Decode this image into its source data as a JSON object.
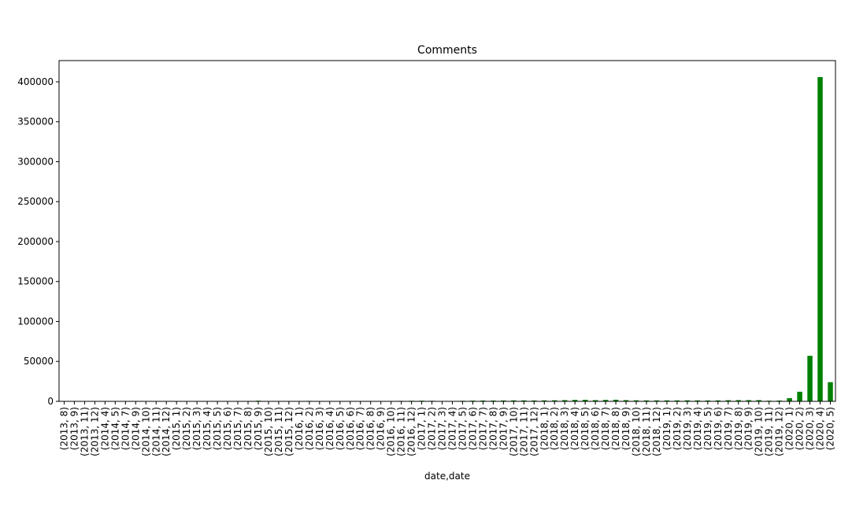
{
  "chart_data": {
    "type": "bar",
    "title": "Comments",
    "x_label": "date,date",
    "categories": [
      "(2013, 8)",
      "(2013, 9)",
      "(2013, 11)",
      "(2013, 12)",
      "(2014, 4)",
      "(2014, 5)",
      "(2014, 7)",
      "(2014, 9)",
      "(2014, 10)",
      "(2014, 11)",
      "(2014, 12)",
      "(2015, 1)",
      "(2015, 2)",
      "(2015, 3)",
      "(2015, 4)",
      "(2015, 5)",
      "(2015, 6)",
      "(2015, 7)",
      "(2015, 8)",
      "(2015, 9)",
      "(2015, 10)",
      "(2015, 11)",
      "(2015, 12)",
      "(2016, 1)",
      "(2016, 2)",
      "(2016, 3)",
      "(2016, 4)",
      "(2016, 5)",
      "(2016, 6)",
      "(2016, 7)",
      "(2016, 8)",
      "(2016, 9)",
      "(2016, 10)",
      "(2016, 11)",
      "(2016, 12)",
      "(2017, 1)",
      "(2017, 2)",
      "(2017, 3)",
      "(2017, 4)",
      "(2017, 5)",
      "(2017, 6)",
      "(2017, 7)",
      "(2017, 8)",
      "(2017, 9)",
      "(2017, 10)",
      "(2017, 11)",
      "(2017, 12)",
      "(2018, 1)",
      "(2018, 2)",
      "(2018, 3)",
      "(2018, 4)",
      "(2018, 5)",
      "(2018, 6)",
      "(2018, 7)",
      "(2018, 8)",
      "(2018, 9)",
      "(2018, 10)",
      "(2018, 11)",
      "(2018, 12)",
      "(2019, 1)",
      "(2019, 2)",
      "(2019, 3)",
      "(2019, 4)",
      "(2019, 5)",
      "(2019, 6)",
      "(2019, 7)",
      "(2019, 8)",
      "(2019, 9)",
      "(2019, 10)",
      "(2019, 11)",
      "(2019, 12)",
      "(2020, 1)",
      "(2020, 2)",
      "(2020, 3)",
      "(2020, 4)",
      "(2020, 5)"
    ],
    "values": [
      50,
      50,
      50,
      50,
      50,
      50,
      50,
      50,
      50,
      50,
      50,
      100,
      100,
      100,
      100,
      100,
      100,
      100,
      100,
      800,
      100,
      100,
      100,
      100,
      600,
      100,
      100,
      100,
      100,
      100,
      100,
      100,
      100,
      600,
      700,
      800,
      700,
      200,
      300,
      700,
      900,
      1000,
      1000,
      1100,
      1200,
      1200,
      1100,
      1200,
      1300,
      1500,
      1800,
      1900,
      1500,
      1800,
      2000,
      1500,
      1300,
      1200,
      1200,
      1200,
      1200,
      1300,
      1200,
      1100,
      1200,
      1400,
      1500,
      1500,
      1500,
      800,
      1000,
      4000,
      12000,
      57000,
      406000,
      24000
    ],
    "color": "#008000",
    "ylim": [
      0,
      426600
    ],
    "yticks": [
      0,
      50000,
      100000,
      150000,
      200000,
      250000,
      300000,
      350000,
      400000
    ]
  }
}
